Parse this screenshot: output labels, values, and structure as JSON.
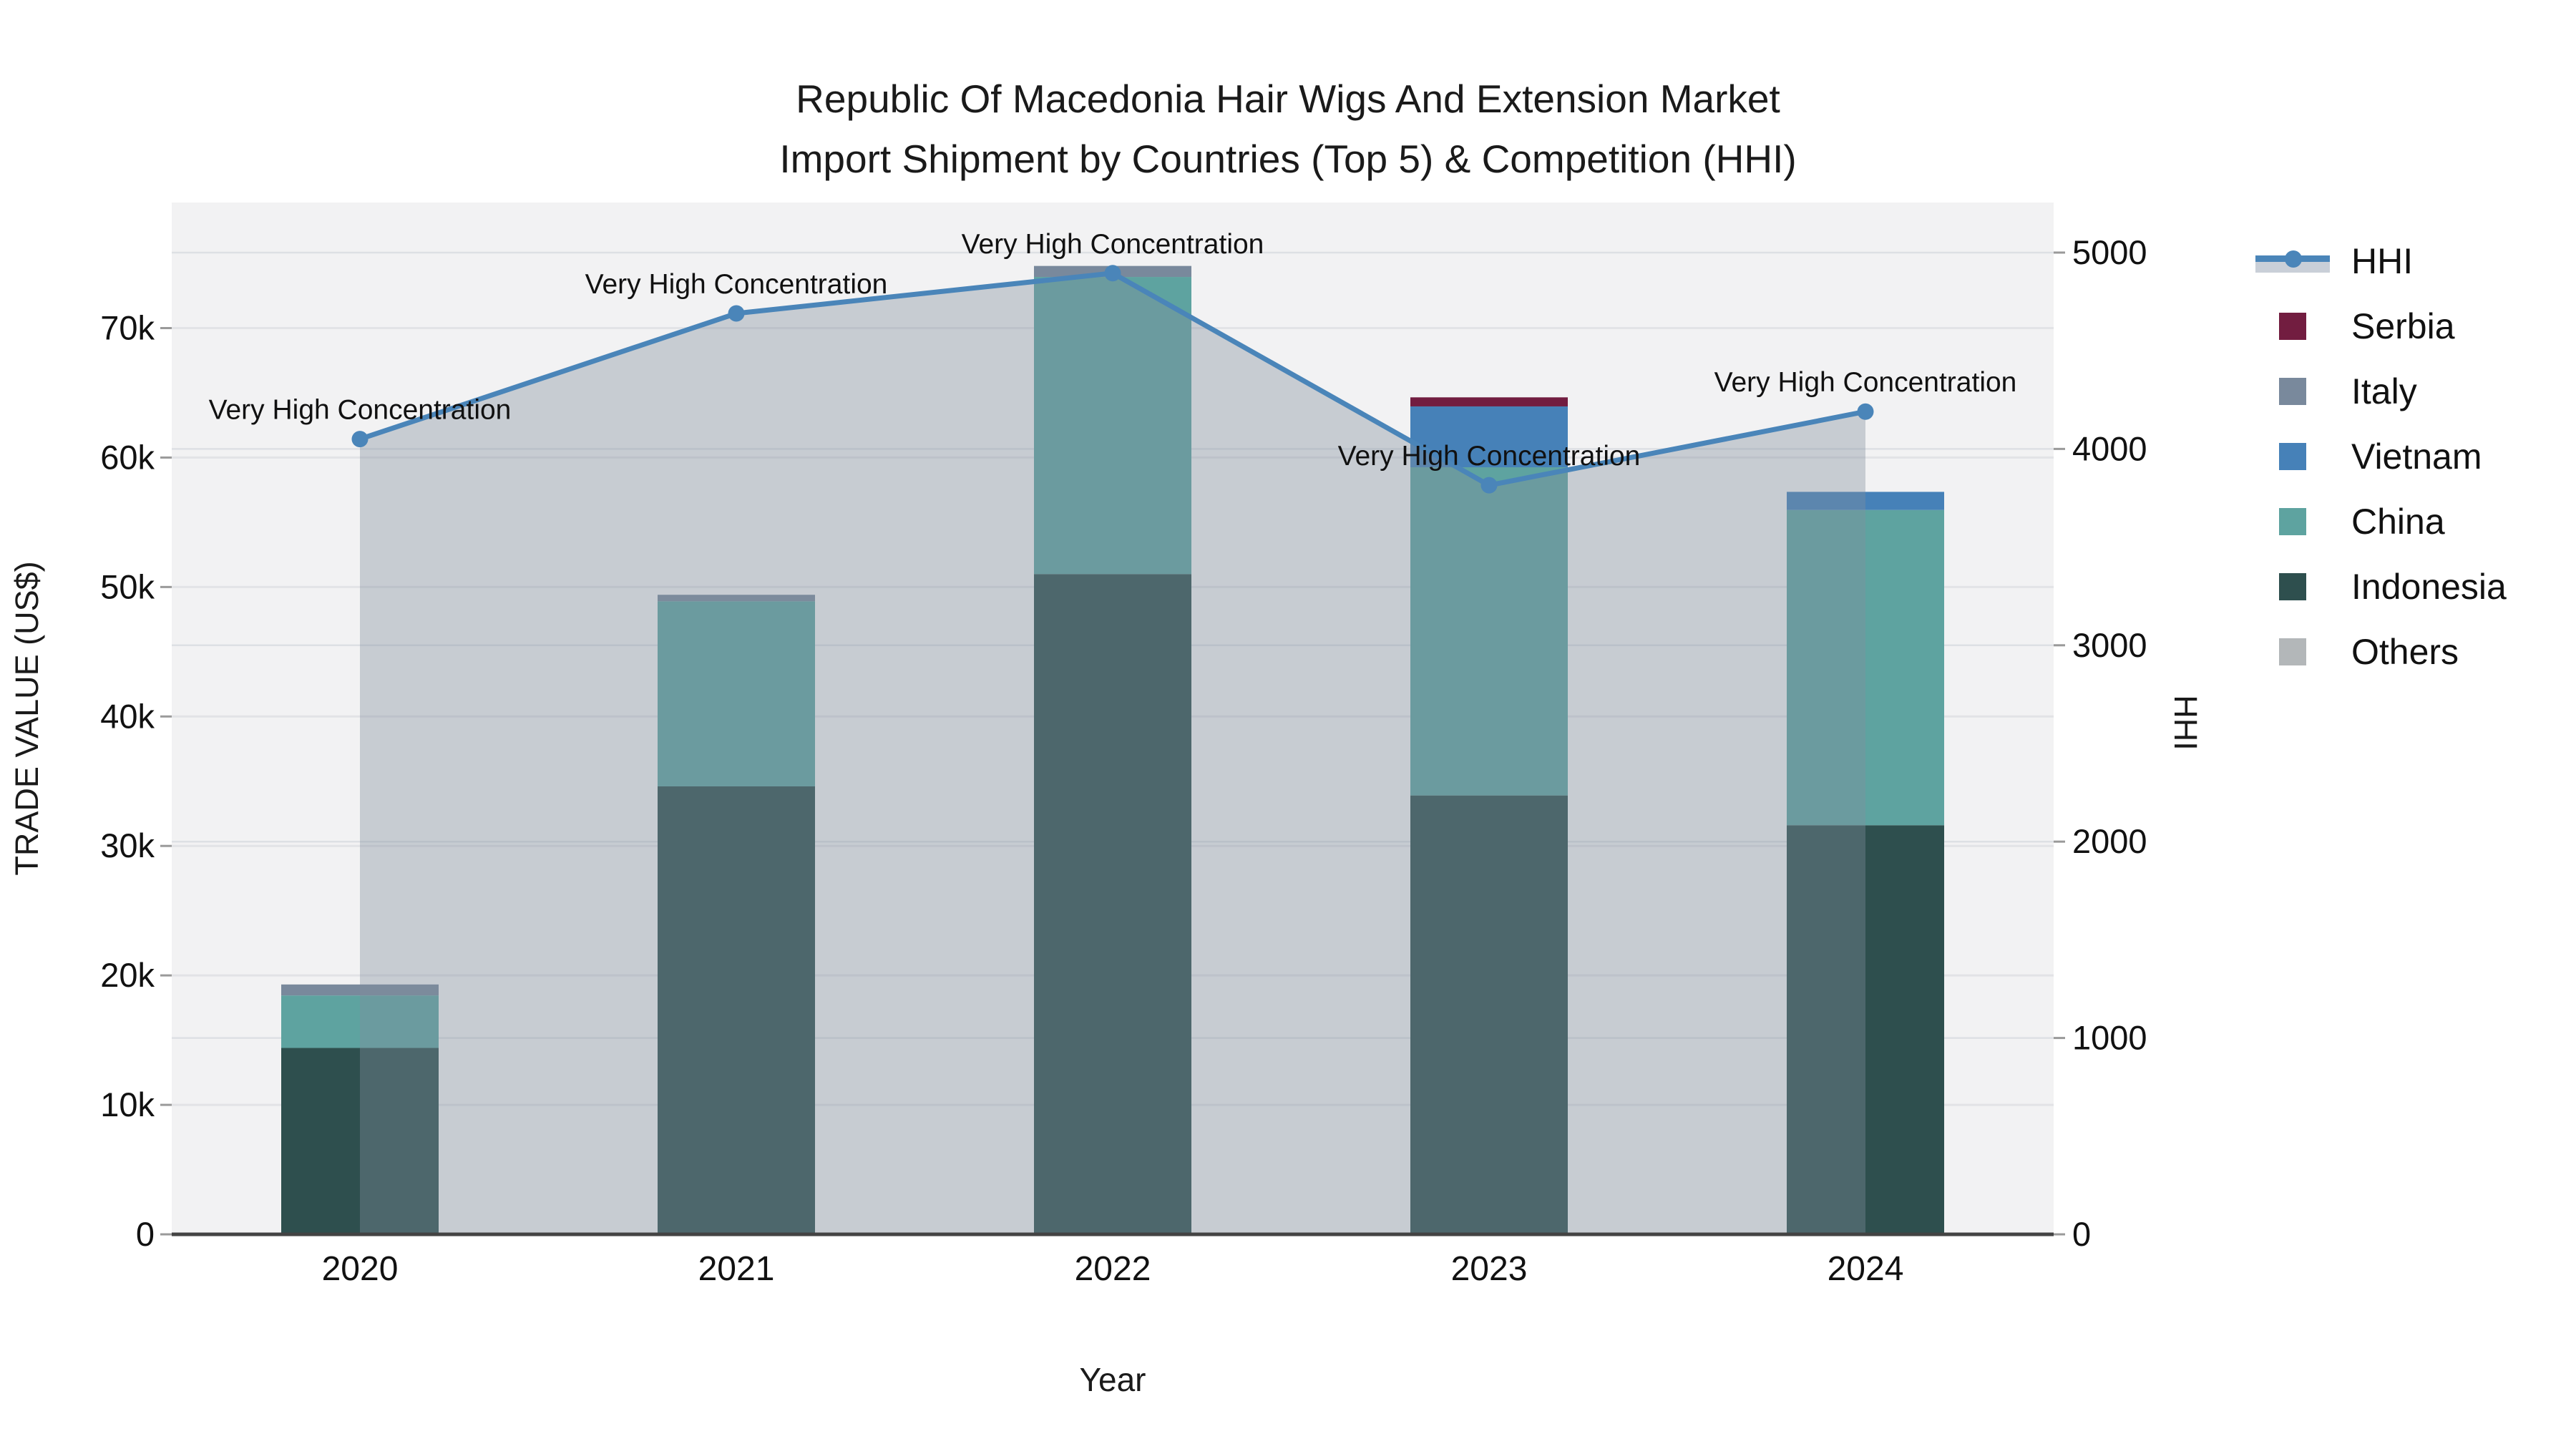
{
  "title": {
    "line1": "Republic Of Macedonia Hair Wigs And Extension Market",
    "line2": "Import Shipment by Countries (Top 5) & Competition (HHI)"
  },
  "chart_data": {
    "type": "bar",
    "subtype": "stacked-bars-with-line-and-area",
    "title": "Republic Of Macedonia Hair Wigs And Extension Market Import Shipment by Countries (Top 5) & Competition (HHI)",
    "categories": [
      "2020",
      "2021",
      "2022",
      "2023",
      "2024"
    ],
    "bar_series": [
      {
        "name": "Indonesia",
        "color": "#2e4f4e",
        "values": [
          14400,
          34600,
          51000,
          33900,
          31600
        ]
      },
      {
        "name": "China",
        "color": "#5ea3a0",
        "values": [
          4050,
          14300,
          22950,
          25350,
          24350
        ]
      },
      {
        "name": "Vietnam",
        "color": "#4681b8",
        "values": [
          0,
          0,
          0,
          4700,
          1400
        ]
      },
      {
        "name": "Italy",
        "color": "#79899c",
        "values": [
          850,
          500,
          850,
          0,
          0
        ]
      },
      {
        "name": "Serbia",
        "color": "#721d40",
        "values": [
          0,
          0,
          0,
          700,
          0
        ]
      },
      {
        "name": "Others",
        "color": "#b3b7b9",
        "values": [
          0,
          0,
          0,
          0,
          0
        ]
      }
    ],
    "line_series": {
      "name": "HHI",
      "color": "#4a85b9",
      "area_color": "rgba(130,142,158,0.38)",
      "values": [
        4050,
        4690,
        4895,
        3815,
        4190
      ]
    },
    "annotations": [
      "Very High Concentration",
      "Very High Concentration",
      "Very High Concentration",
      "Very High Concentration",
      "Very High Concentration"
    ],
    "left_axis": {
      "label": "TRADE VALUE (US$)",
      "tick_labels": [
        "0",
        "10k",
        "20k",
        "30k",
        "40k",
        "50k",
        "60k",
        "70k"
      ],
      "tick_values": [
        0,
        10000,
        20000,
        30000,
        40000,
        50000,
        60000,
        70000
      ],
      "max": 79700
    },
    "right_axis": {
      "label": "HHI",
      "tick_labels": [
        "0",
        "1000",
        "2000",
        "3000",
        "4000",
        "5000"
      ],
      "tick_values": [
        0,
        1000,
        2000,
        3000,
        4000,
        5000
      ],
      "max": 5255
    },
    "x_axis": {
      "label": "Year"
    },
    "legend": [
      {
        "label": "HHI",
        "type": "line",
        "color": "#4a85b9",
        "area_color": "#c9cfd8"
      },
      {
        "label": "Serbia",
        "type": "box",
        "color": "#721d40"
      },
      {
        "label": "Italy",
        "type": "box",
        "color": "#79899c"
      },
      {
        "label": "Vietnam",
        "type": "box",
        "color": "#4681b8"
      },
      {
        "label": "China",
        "type": "box",
        "color": "#5ea3a0"
      },
      {
        "label": "Indonesia",
        "type": "box",
        "color": "#2e4f4e"
      },
      {
        "label": "Others",
        "type": "box",
        "color": "#b3b7b9"
      }
    ],
    "colors": {
      "plot_bg": "#f2f2f3",
      "grid_left": "#e2e3e6",
      "grid_right": "#dde0e4",
      "axis_line": "#434343",
      "tick_mark": "#9a9a9a"
    }
  }
}
